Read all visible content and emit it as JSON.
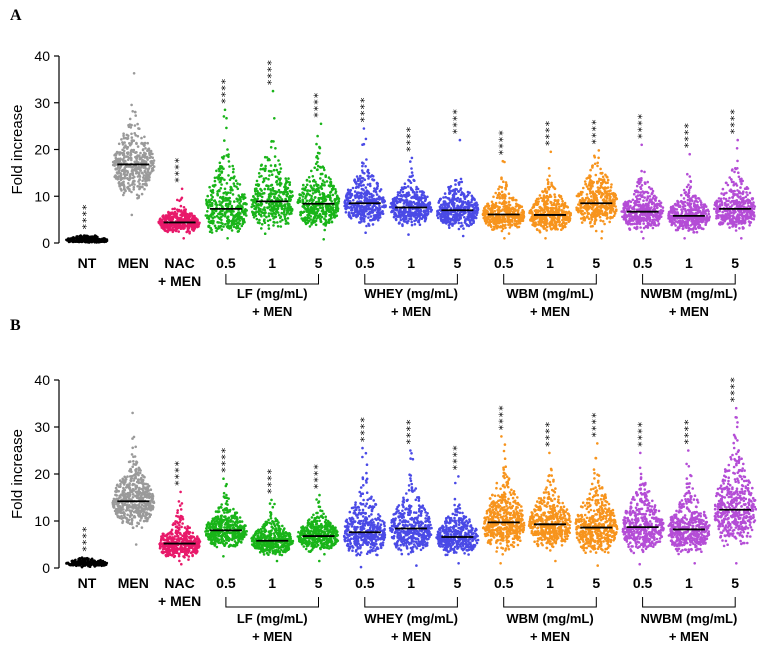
{
  "chart_data": [
    {
      "panel": "A",
      "type": "scatter",
      "ylabel": "Fold increase",
      "ylim": [
        0,
        40
      ],
      "yticks": [
        "0",
        "10",
        "20",
        "30",
        "40"
      ],
      "categories": [
        {
          "label": "NT",
          "sub": "",
          "median": 0.6,
          "min": 0.1,
          "max": 1.6,
          "n": 220,
          "spread": 0.6,
          "sig": "****",
          "color": "#000000"
        },
        {
          "label": "MEN",
          "sub": "",
          "median": 16.8,
          "min": 6.0,
          "max": 36.3,
          "n": 420,
          "spread": 4.5,
          "sig": "",
          "color": "#9a9a9a"
        },
        {
          "label": "NAC",
          "sub": "+ MEN",
          "median": 4.4,
          "min": 1.0,
          "max": 11.6,
          "n": 380,
          "spread": 1.7,
          "sig": "****",
          "color": "#e8196a"
        },
        {
          "label": "0.5",
          "sub": "",
          "median": 7.3,
          "min": 1.0,
          "max": 28.5,
          "n": 360,
          "spread": 5.5,
          "sig": "****",
          "color": "#19b419"
        },
        {
          "label": "1",
          "sub": "",
          "median": 8.9,
          "min": 2.0,
          "max": 32.5,
          "n": 360,
          "spread": 5.8,
          "sig": "****",
          "color": "#19b419"
        },
        {
          "label": "5",
          "sub": "",
          "median": 8.4,
          "min": 0.8,
          "max": 25.5,
          "n": 400,
          "spread": 4.2,
          "sig": "****",
          "color": "#19b419"
        },
        {
          "label": "0.5",
          "sub": "",
          "median": 8.5,
          "min": 2.2,
          "max": 24.5,
          "n": 400,
          "spread": 3.6,
          "sig": "****",
          "color": "#4a4ae6"
        },
        {
          "label": "1",
          "sub": "",
          "median": 7.6,
          "min": 1.8,
          "max": 18.2,
          "n": 400,
          "spread": 2.8,
          "sig": "****",
          "color": "#4a4ae6"
        },
        {
          "label": "5",
          "sub": "",
          "median": 7.0,
          "min": 1.5,
          "max": 22.0,
          "n": 400,
          "spread": 3.2,
          "sig": "****",
          "color": "#4a4ae6"
        },
        {
          "label": "0.5",
          "sub": "",
          "median": 6.1,
          "min": 1.0,
          "max": 17.5,
          "n": 400,
          "spread": 2.8,
          "sig": "****",
          "color": "#f7941d"
        },
        {
          "label": "1",
          "sub": "",
          "median": 6.0,
          "min": 1.0,
          "max": 19.5,
          "n": 400,
          "spread": 3.0,
          "sig": "****",
          "color": "#f7941d"
        },
        {
          "label": "5",
          "sub": "",
          "median": 8.5,
          "min": 1.0,
          "max": 19.8,
          "n": 400,
          "spread": 4.2,
          "sig": "****",
          "color": "#f7941d"
        },
        {
          "label": "0.5",
          "sub": "",
          "median": 6.7,
          "min": 1.0,
          "max": 21.0,
          "n": 400,
          "spread": 3.2,
          "sig": "****",
          "color": "#b44dd6"
        },
        {
          "label": "1",
          "sub": "",
          "median": 5.8,
          "min": 1.0,
          "max": 19.0,
          "n": 400,
          "spread": 2.8,
          "sig": "****",
          "color": "#b44dd6"
        },
        {
          "label": "5",
          "sub": "",
          "median": 7.3,
          "min": 1.0,
          "max": 22.0,
          "n": 400,
          "spread": 3.8,
          "sig": "****",
          "color": "#b44dd6"
        }
      ],
      "groups": [
        {
          "name": "LF (mg/mL)",
          "sub": "+ MEN",
          "from": 3,
          "to": 5
        },
        {
          "name": "WHEY (mg/mL)",
          "sub": "+ MEN",
          "from": 6,
          "to": 8
        },
        {
          "name": "WBM (mg/mL)",
          "sub": "+ MEN",
          "from": 9,
          "to": 11
        },
        {
          "name": "NWBM (mg/mL)",
          "sub": "+ MEN",
          "from": 12,
          "to": 14
        }
      ]
    },
    {
      "panel": "B",
      "type": "scatter",
      "ylabel": "Fold increase",
      "ylim": [
        0,
        40
      ],
      "yticks": [
        "0",
        "10",
        "20",
        "30",
        "40"
      ],
      "categories": [
        {
          "label": "NT",
          "sub": "",
          "median": 1.0,
          "min": 0.2,
          "max": 2.2,
          "n": 220,
          "spread": 0.6,
          "sig": "****",
          "color": "#000000"
        },
        {
          "label": "MEN",
          "sub": "",
          "median": 14.2,
          "min": 5.0,
          "max": 33.0,
          "n": 520,
          "spread": 4.0,
          "sig": "",
          "color": "#9a9a9a"
        },
        {
          "label": "NAC",
          "sub": "+ MEN",
          "median": 5.2,
          "min": 0.8,
          "max": 16.2,
          "n": 420,
          "spread": 2.6,
          "sig": "****",
          "color": "#e8196a"
        },
        {
          "label": "0.5",
          "sub": "",
          "median": 8.0,
          "min": 2.5,
          "max": 19.0,
          "n": 420,
          "spread": 2.8,
          "sig": "****",
          "color": "#19b419"
        },
        {
          "label": "1",
          "sub": "",
          "median": 5.8,
          "min": 1.5,
          "max": 14.5,
          "n": 420,
          "spread": 2.2,
          "sig": "****",
          "color": "#19b419"
        },
        {
          "label": "5",
          "sub": "",
          "median": 6.8,
          "min": 1.5,
          "max": 15.5,
          "n": 420,
          "spread": 2.4,
          "sig": "****",
          "color": "#19b419"
        },
        {
          "label": "0.5",
          "sub": "",
          "median": 7.6,
          "min": 0.2,
          "max": 25.5,
          "n": 420,
          "spread": 4.5,
          "sig": "****",
          "color": "#4a4ae6"
        },
        {
          "label": "1",
          "sub": "",
          "median": 8.4,
          "min": 0.5,
          "max": 25.0,
          "n": 420,
          "spread": 4.2,
          "sig": "****",
          "color": "#4a4ae6"
        },
        {
          "label": "5",
          "sub": "",
          "median": 6.6,
          "min": 1.0,
          "max": 19.5,
          "n": 420,
          "spread": 3.0,
          "sig": "****",
          "color": "#4a4ae6"
        },
        {
          "label": "0.5",
          "sub": "",
          "median": 9.7,
          "min": 1.0,
          "max": 28.0,
          "n": 480,
          "spread": 4.8,
          "sig": "****",
          "color": "#f7941d"
        },
        {
          "label": "1",
          "sub": "",
          "median": 9.3,
          "min": 1.5,
          "max": 24.5,
          "n": 460,
          "spread": 4.2,
          "sig": "****",
          "color": "#f7941d"
        },
        {
          "label": "5",
          "sub": "",
          "median": 8.6,
          "min": 0.5,
          "max": 26.5,
          "n": 460,
          "spread": 4.6,
          "sig": "****",
          "color": "#f7941d"
        },
        {
          "label": "0.5",
          "sub": "",
          "median": 8.7,
          "min": 0.8,
          "max": 24.5,
          "n": 440,
          "spread": 4.2,
          "sig": "****",
          "color": "#b44dd6"
        },
        {
          "label": "1",
          "sub": "",
          "median": 8.2,
          "min": 1.0,
          "max": 25.0,
          "n": 440,
          "spread": 4.0,
          "sig": "****",
          "color": "#b44dd6"
        },
        {
          "label": "5",
          "sub": "",
          "median": 12.4,
          "min": 1.0,
          "max": 34.0,
          "n": 460,
          "spread": 6.0,
          "sig": "****",
          "color": "#b44dd6"
        }
      ],
      "groups": [
        {
          "name": "LF (mg/mL)",
          "sub": "+ MEN",
          "from": 3,
          "to": 5
        },
        {
          "name": "WHEY (mg/mL)",
          "sub": "+ MEN",
          "from": 6,
          "to": 8
        },
        {
          "name": "WBM (mg/mL)",
          "sub": "+ MEN",
          "from": 9,
          "to": 11
        },
        {
          "name": "NWBM (mg/mL)",
          "sub": "+ MEN",
          "from": 12,
          "to": 14
        }
      ]
    }
  ]
}
